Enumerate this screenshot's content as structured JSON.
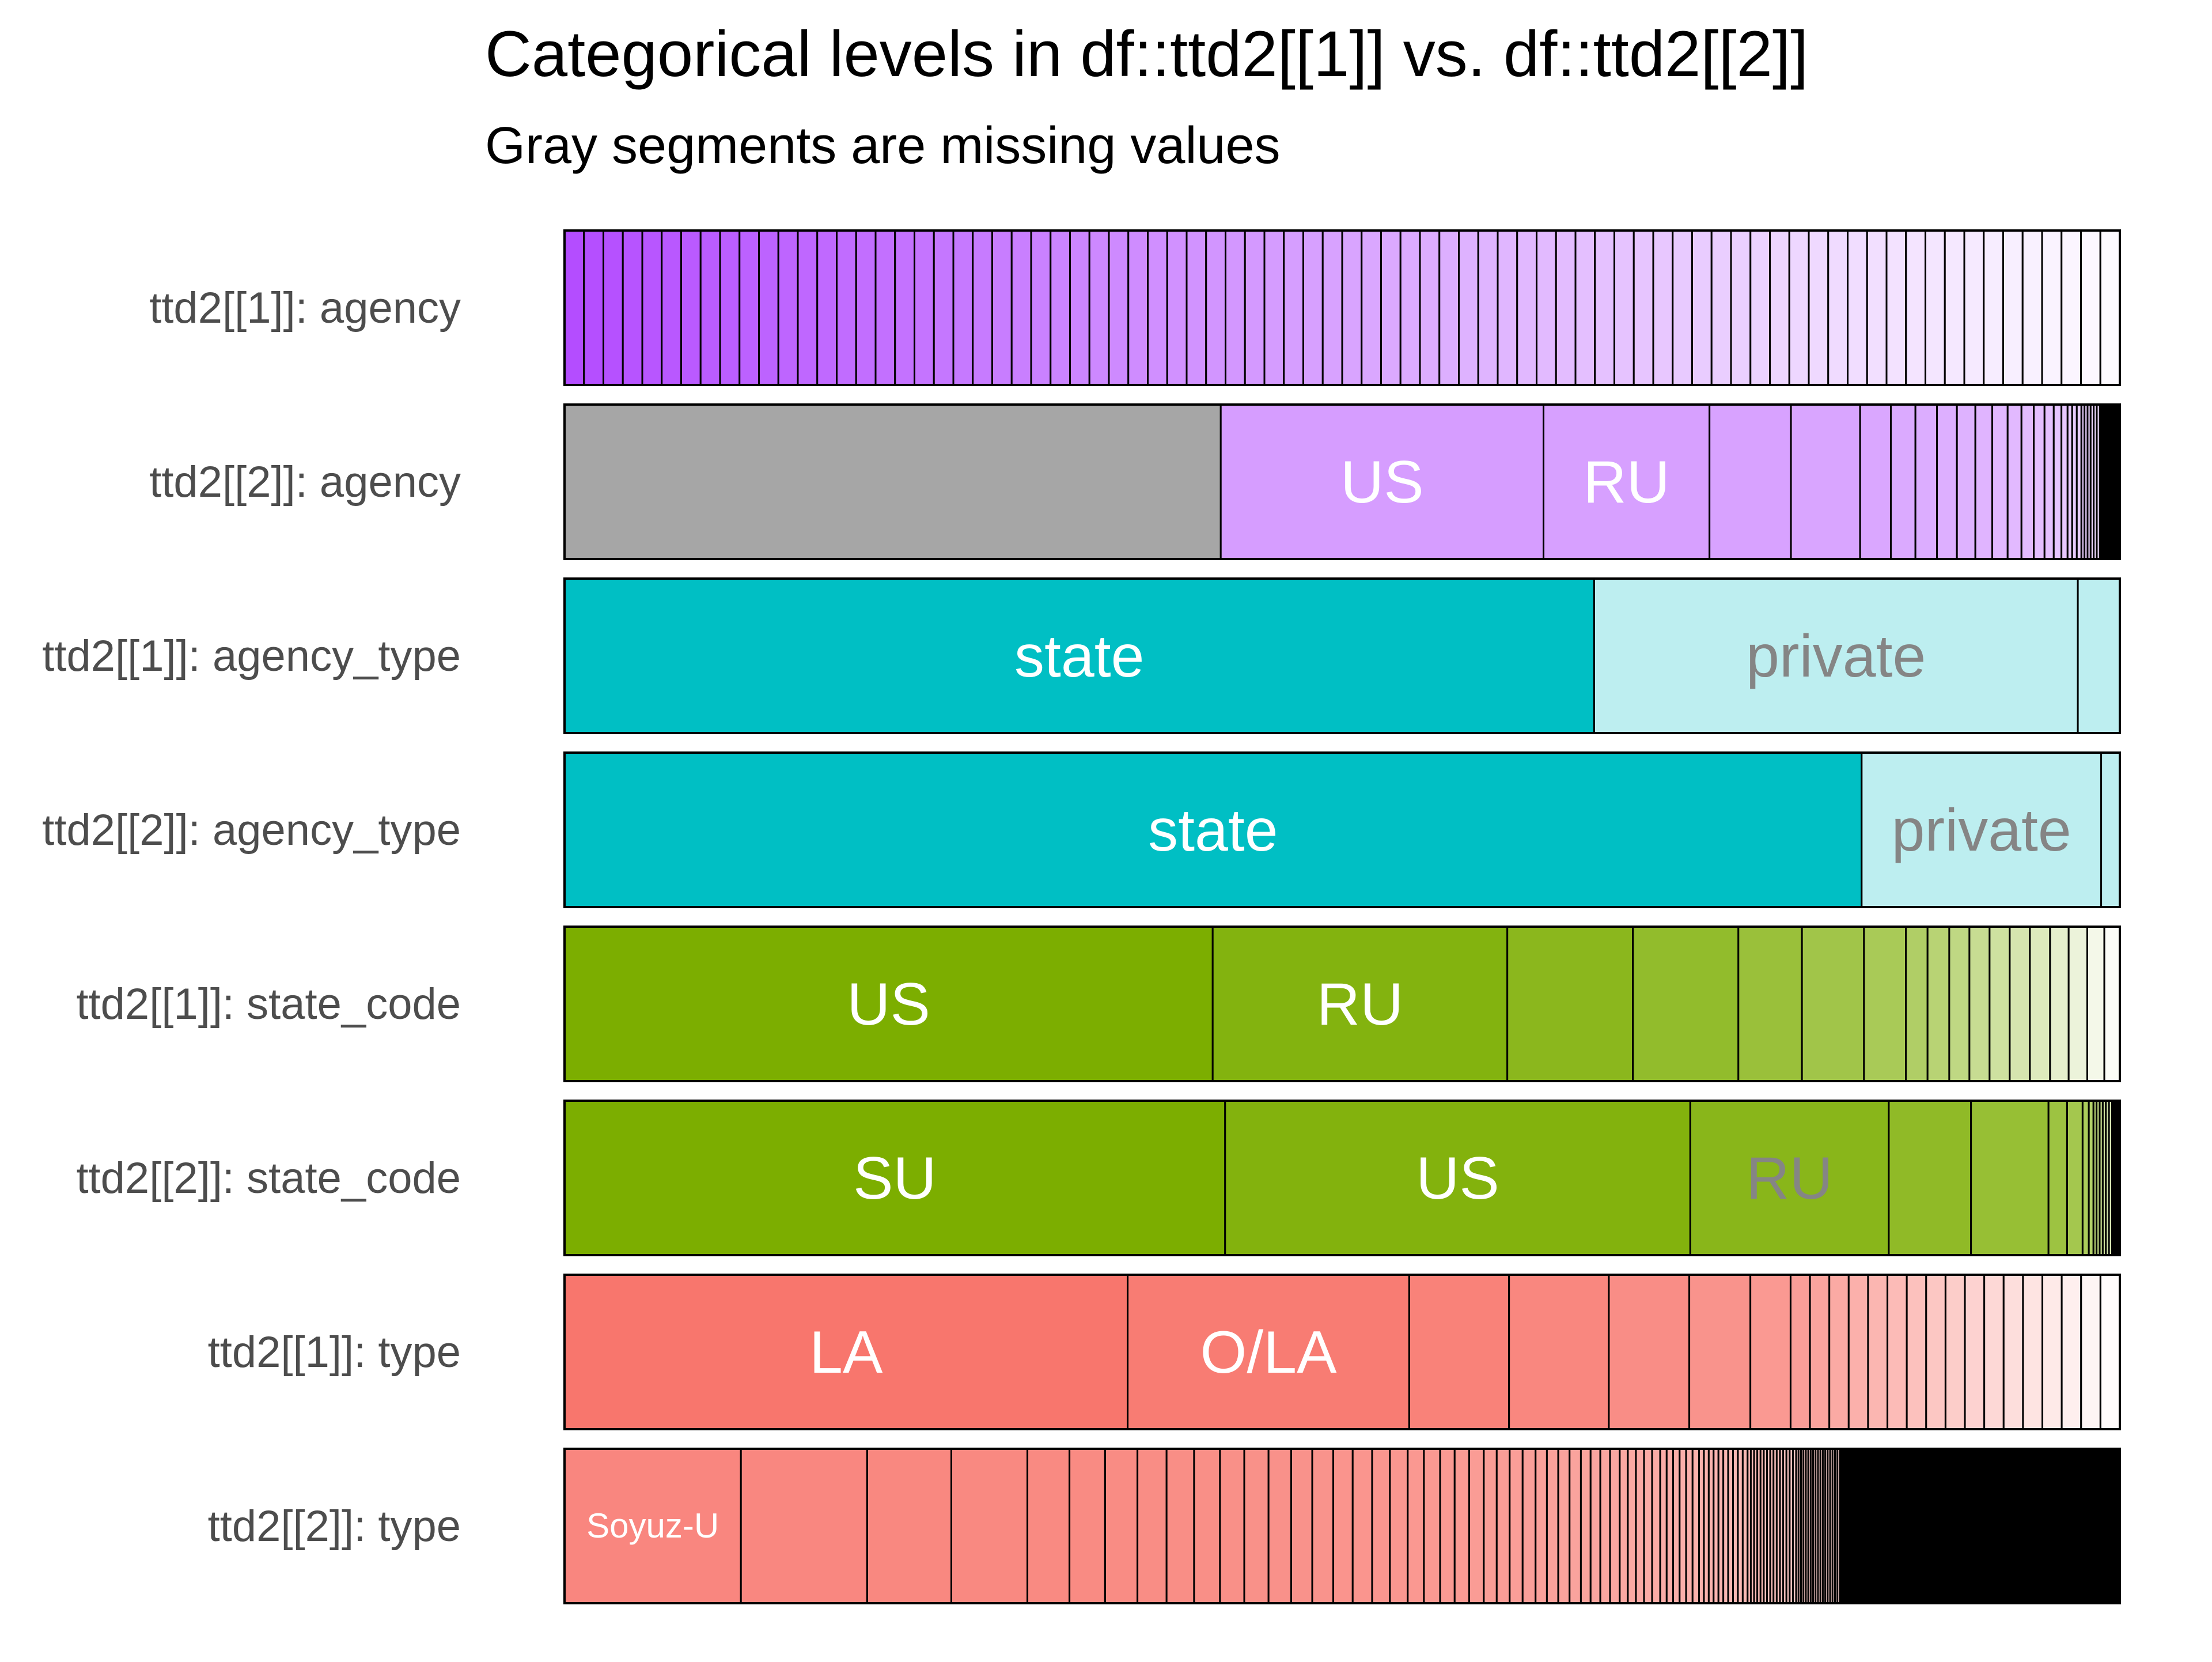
{
  "chart_data": {
    "type": "bar",
    "title": "Categorical levels in df::ttd2[[1]] vs. df::ttd2[[2]]",
    "subtitle": "Gray segments are missing values",
    "rows": [
      {
        "label": "ttd2[[1]]: agency",
        "base_color": "#b44dff",
        "pattern": "gradient",
        "values": [
          1.25,
          1.25,
          1.25,
          1.25,
          1.25,
          1.25,
          1.25,
          1.25,
          1.25,
          1.25,
          1.25,
          1.25,
          1.25,
          1.25,
          1.25,
          1.25,
          1.25,
          1.25,
          1.25,
          1.25,
          1.25,
          1.25,
          1.25,
          1.25,
          1.25,
          1.25,
          1.25,
          1.25,
          1.25,
          1.25,
          1.25,
          1.25,
          1.25,
          1.25,
          1.25,
          1.25,
          1.25,
          1.25,
          1.25,
          1.25,
          1.25,
          1.25,
          1.25,
          1.25,
          1.25,
          1.25,
          1.25,
          1.25,
          1.25,
          1.25,
          1.25,
          1.25,
          1.25,
          1.25,
          1.25,
          1.25,
          1.25,
          1.25,
          1.25,
          1.25,
          1.25,
          1.25,
          1.25,
          1.25,
          1.25,
          1.25,
          1.25,
          1.25,
          1.25,
          1.25,
          1.25,
          1.25,
          1.25,
          1.25,
          1.25,
          1.25,
          1.25,
          1.25,
          1.25,
          1.25
        ],
        "segment_labels": []
      },
      {
        "label": "ttd2[[2]]: agency",
        "base_color": "#b44dff",
        "pattern": "missing_first",
        "values": [
          42.7,
          21.0,
          10.8,
          5.3,
          4.5,
          2.0,
          1.6,
          1.4,
          1.3,
          1.2,
          1.1,
          1.0,
          0.9,
          0.8,
          0.7,
          0.6,
          0.5,
          0.4,
          0.3,
          0.3,
          0.3,
          0.2,
          0.2,
          0.2,
          0.2,
          0.2,
          0.2,
          0.1,
          0.1,
          0.1,
          0.1,
          0.1,
          0.1,
          0.1,
          0.1,
          0.1,
          0.1,
          0.1,
          0.1,
          0.1
        ],
        "segment_labels": [
          "",
          "US",
          "RU"
        ]
      },
      {
        "label": "ttd2[[1]]: agency_type",
        "base_color": "#00bfc4",
        "pattern": "two_tone",
        "values": [
          66.2,
          31.1,
          2.7
        ],
        "segment_labels": [
          "state",
          "private"
        ]
      },
      {
        "label": "ttd2[[2]]: agency_type",
        "base_color": "#00bfc4",
        "pattern": "two_tone",
        "values": [
          83.4,
          15.4,
          1.2
        ],
        "segment_labels": [
          "state",
          "private"
        ]
      },
      {
        "label": "ttd2[[1]]: state_code",
        "base_color": "#7cae00",
        "pattern": "gradient",
        "values": [
          41.8,
          19.0,
          8.1,
          6.8,
          4.1,
          4.0,
          2.7,
          1.4,
          1.4,
          1.3,
          1.3,
          1.3,
          1.3,
          1.3,
          1.2,
          1.2,
          1.1,
          1.0
        ],
        "segment_labels": [
          "US",
          "RU"
        ]
      },
      {
        "label": "ttd2[[2]]: state_code",
        "base_color": "#7cae00",
        "pattern": "gradient",
        "values": [
          42.6,
          30.0,
          12.8,
          5.3,
          5.0,
          1.2,
          1.0,
          0.4,
          0.3,
          0.2,
          0.2,
          0.2,
          0.2,
          0.2,
          0.2,
          0.1,
          0.1,
          0.1,
          0.1,
          0.1
        ],
        "segment_labels": [
          "SU",
          "US",
          "RU"
        ]
      },
      {
        "label": "ttd2[[1]]: type",
        "base_color": "#f8766d",
        "pattern": "gradient",
        "values": [
          37.8,
          18.9,
          6.7,
          6.7,
          5.4,
          4.1,
          2.7,
          1.3,
          1.3,
          1.3,
          1.3,
          1.3,
          1.3,
          1.3,
          1.3,
          1.3,
          1.3,
          1.3,
          1.3,
          1.3,
          1.3,
          1.3,
          1.3,
          1.3
        ],
        "segment_labels": [
          "LA",
          "O/LA"
        ]
      },
      {
        "label": "ttd2[[2]]: type",
        "base_color": "#f8766d",
        "pattern": "long_tail",
        "values": [
          10.9,
          7.8,
          5.2,
          4.7,
          2.6,
          2.2,
          2.0,
          1.8,
          1.7,
          1.6,
          1.5,
          1.5,
          1.4,
          1.3,
          1.3,
          1.2,
          1.2,
          1.1,
          1.1,
          1.0,
          1.0,
          0.9,
          0.9,
          0.9,
          0.8,
          0.8,
          0.8,
          0.8,
          0.7,
          0.7,
          0.7,
          0.7,
          0.6,
          0.6,
          0.6,
          0.6,
          0.5,
          0.5,
          0.5,
          0.5,
          0.5,
          0.4,
          0.4,
          0.4,
          0.4,
          0.4,
          0.4,
          0.3,
          0.3,
          0.3,
          0.3,
          0.3,
          0.3,
          0.3,
          0.3,
          0.3,
          0.3,
          0.2,
          0.2,
          0.2,
          0.2,
          0.2,
          0.2,
          0.2,
          0.2,
          0.2,
          0.2,
          0.2,
          0.2,
          0.2,
          0.2,
          0.2,
          0.15,
          0.15,
          0.15,
          0.15,
          0.15,
          0.15,
          0.15,
          0.15,
          0.15,
          0.15,
          0.15,
          0.15,
          0.15,
          0.15,
          0.15,
          0.15,
          0.15,
          0.15,
          0.1,
          0.1,
          0.1,
          0.1,
          0.1,
          0.1,
          0.1,
          0.1,
          0.1,
          0.1,
          0.1,
          0.1,
          0.1,
          0.1,
          0.1,
          0.1,
          0.1,
          0.1,
          0.1,
          0.1,
          0.1,
          0.1,
          0.1,
          0.1,
          0.1,
          0.1,
          0.1,
          0.1,
          0.1,
          0.1
        ],
        "tail_percent": 14.3,
        "segment_labels": [
          "Soyuz-U"
        ]
      }
    ],
    "xlim": [
      0,
      100
    ],
    "grid": false,
    "legend": "none"
  }
}
